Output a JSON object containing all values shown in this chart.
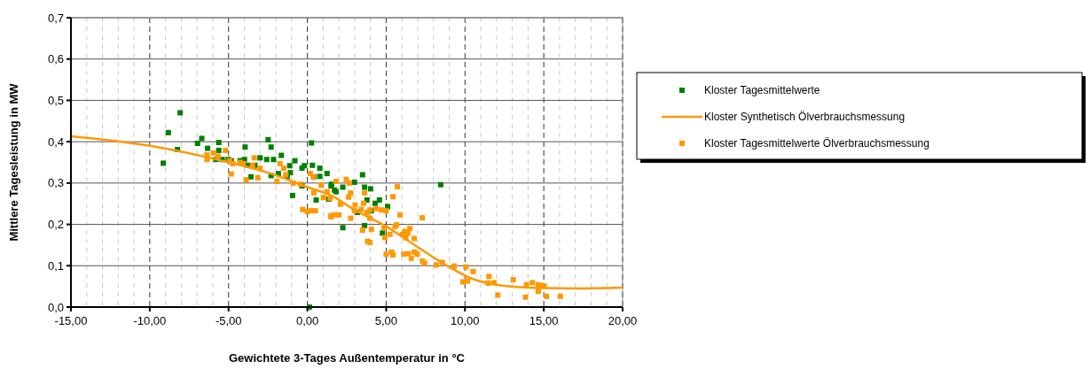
{
  "chart_data": {
    "type": "scatter",
    "xlabel": "Gewichtete 3-Tages Außentemperatur in °C",
    "ylabel": "Mittlere Tagesleistung in MW",
    "xlim": [
      -15,
      20
    ],
    "xticks": [
      {
        "value": -15,
        "label": "-15,00"
      },
      {
        "value": -10,
        "label": "-10,00"
      },
      {
        "value": -5,
        "label": "-5,00"
      },
      {
        "value": 0,
        "label": "0,00"
      },
      {
        "value": 5,
        "label": "5,00"
      },
      {
        "value": 10,
        "label": "10,00"
      },
      {
        "value": 15,
        "label": "15,00"
      },
      {
        "value": 20,
        "label": "20,00"
      }
    ],
    "ylim": [
      0,
      0.7
    ],
    "yticks": [
      {
        "value": 0,
        "label": "0,0"
      },
      {
        "value": 0.1,
        "label": "0,1"
      },
      {
        "value": 0.2,
        "label": "0,2"
      },
      {
        "value": 0.3,
        "label": "0,3"
      },
      {
        "value": 0.4,
        "label": "0,4"
      },
      {
        "value": 0.5,
        "label": "0,5"
      },
      {
        "value": 0.6,
        "label": "0,6"
      },
      {
        "value": 0.7,
        "label": "0,7"
      }
    ],
    "grid": true,
    "legend": "right",
    "marker": "square",
    "series": [
      {
        "name": "Kloster Tagesmittelwerte",
        "color": "#008000",
        "x": [
          -8.07,
          -8.82,
          -8.24,
          -9.14,
          -6.97,
          -6.7,
          -6.33,
          -5.62,
          -5.62,
          -3.95,
          -2.49,
          -2.3,
          -1.65,
          -0.79,
          0.26,
          -0.94,
          0.13,
          -3.58,
          -3.0,
          -2.58,
          -2.15,
          -2.3,
          -1.84,
          -1.12,
          -0.34,
          -0.19,
          0.32,
          0.79,
          1.25,
          0.56,
          1.54,
          -5.02,
          -4.83,
          -5.4,
          -5.8,
          -4.27,
          -3.99,
          -3.8,
          -3.33,
          -1.28,
          -1.08,
          -0.34,
          1.35,
          1.82,
          0.41,
          0.79,
          8.46,
          3.5,
          2.99,
          3.63,
          4.01,
          2.25,
          1.72,
          4.57,
          5.09,
          4.3,
          3.78,
          4.06,
          3.18,
          2.25,
          3.63,
          4.76,
          1.5
        ],
        "values": [
          0.47,
          0.422,
          0.381,
          0.348,
          0.396,
          0.408,
          0.384,
          0.398,
          0.379,
          0.387,
          0.405,
          0.387,
          0.367,
          0.354,
          0.397,
          0.27,
          0.0,
          0.315,
          0.361,
          0.357,
          0.357,
          0.318,
          0.323,
          0.342,
          0.336,
          0.342,
          0.343,
          0.336,
          0.323,
          0.259,
          0.297,
          0.357,
          0.354,
          0.357,
          0.357,
          0.354,
          0.357,
          0.343,
          0.343,
          0.315,
          0.325,
          0.293,
          0.261,
          0.279,
          0.315,
          0.316,
          0.296,
          0.32,
          0.302,
          0.29,
          0.286,
          0.29,
          0.283,
          0.259,
          0.243,
          0.251,
          0.259,
          0.233,
          0.229,
          0.192,
          0.197,
          0.179,
          0.293
        ]
      },
      {
        "name": "Kloster Synthetisch Ölverbrauchsmessung",
        "type": "line",
        "color": "#ff9900",
        "marker": "none",
        "x": [
          -15,
          -10,
          -5,
          -2.5,
          0,
          1.5,
          3,
          5,
          7,
          9,
          10.5,
          12,
          13.5,
          15,
          17,
          20
        ],
        "values": [
          0.413,
          0.39,
          0.35,
          0.325,
          0.29,
          0.27,
          0.235,
          0.195,
          0.145,
          0.097,
          0.068,
          0.054,
          0.048,
          0.046,
          0.045,
          0.047
        ]
      },
      {
        "name": "Kloster Tagesmittelwerte Ölverbrauchsmessung",
        "color": "#ff9900",
        "x": [
          -6.37,
          -6.37,
          -5.96,
          -5.67,
          -5.2,
          -4.93,
          -4.83,
          -4.73,
          -4.27,
          -4.08,
          -3.89,
          -3.37,
          -3.48,
          -3.0,
          -3.15,
          -1.93,
          -1.74,
          -1.5,
          -1.37,
          -0.9,
          -0.43,
          0.19,
          0.38,
          0.88,
          0.41,
          1.01,
          1.25,
          1.44,
          -0.3,
          0.0,
          0.22,
          0.51,
          1.5,
          1.72,
          5.71,
          5.43,
          2.47,
          2.66,
          2.75,
          2.62,
          2.1,
          1.82,
          3.63,
          3.56,
          3.03,
          2.99,
          3.41,
          3.78,
          3.97,
          4.35,
          4.69,
          5.0,
          1.5,
          2.0,
          2.75,
          3.97,
          3.5,
          4.06,
          3.82,
          3.97,
          4.87,
          4.91,
          5.24,
          5.56,
          5.66,
          5.88,
          6.03,
          6.18,
          6.37,
          6.5,
          6.78,
          6.25,
          7.29,
          5.0,
          5.34,
          5.43,
          6.12,
          6.4,
          6.59,
          6.78,
          6.97,
          7.3,
          7.44,
          8.18,
          8.56,
          9.31,
          10.06,
          10.52,
          9.87,
          10.15,
          11.52,
          11.46,
          11.84,
          12.08,
          13.06,
          13.9,
          14.27,
          13.84,
          14.65,
          14.83,
          15.02,
          14.65,
          15.17,
          16.05
        ],
        "values": [
          0.368,
          0.357,
          0.373,
          0.365,
          0.379,
          0.354,
          0.322,
          0.347,
          0.35,
          0.347,
          0.308,
          0.361,
          0.343,
          0.336,
          0.313,
          0.304,
          0.347,
          0.336,
          0.32,
          0.3,
          0.297,
          0.323,
          0.315,
          0.295,
          0.276,
          0.265,
          0.279,
          0.263,
          0.236,
          0.231,
          0.233,
          0.233,
          0.218,
          0.223,
          0.291,
          0.267,
          0.309,
          0.3,
          0.276,
          0.266,
          0.249,
          0.304,
          0.276,
          0.251,
          0.247,
          0.233,
          0.236,
          0.229,
          0.235,
          0.238,
          0.235,
          0.233,
          0.221,
          0.223,
          0.215,
          0.215,
          0.186,
          0.188,
          0.159,
          0.156,
          0.192,
          0.168,
          0.176,
          0.195,
          0.199,
          0.223,
          0.176,
          0.183,
          0.179,
          0.19,
          0.166,
          0.168,
          0.216,
          0.128,
          0.133,
          0.126,
          0.128,
          0.129,
          0.118,
          0.133,
          0.128,
          0.111,
          0.106,
          0.102,
          0.108,
          0.099,
          0.097,
          0.086,
          0.061,
          0.063,
          0.074,
          0.058,
          0.059,
          0.029,
          0.066,
          0.054,
          0.059,
          0.024,
          0.054,
          0.052,
          0.051,
          0.038,
          0.026,
          0.026
        ]
      }
    ]
  }
}
